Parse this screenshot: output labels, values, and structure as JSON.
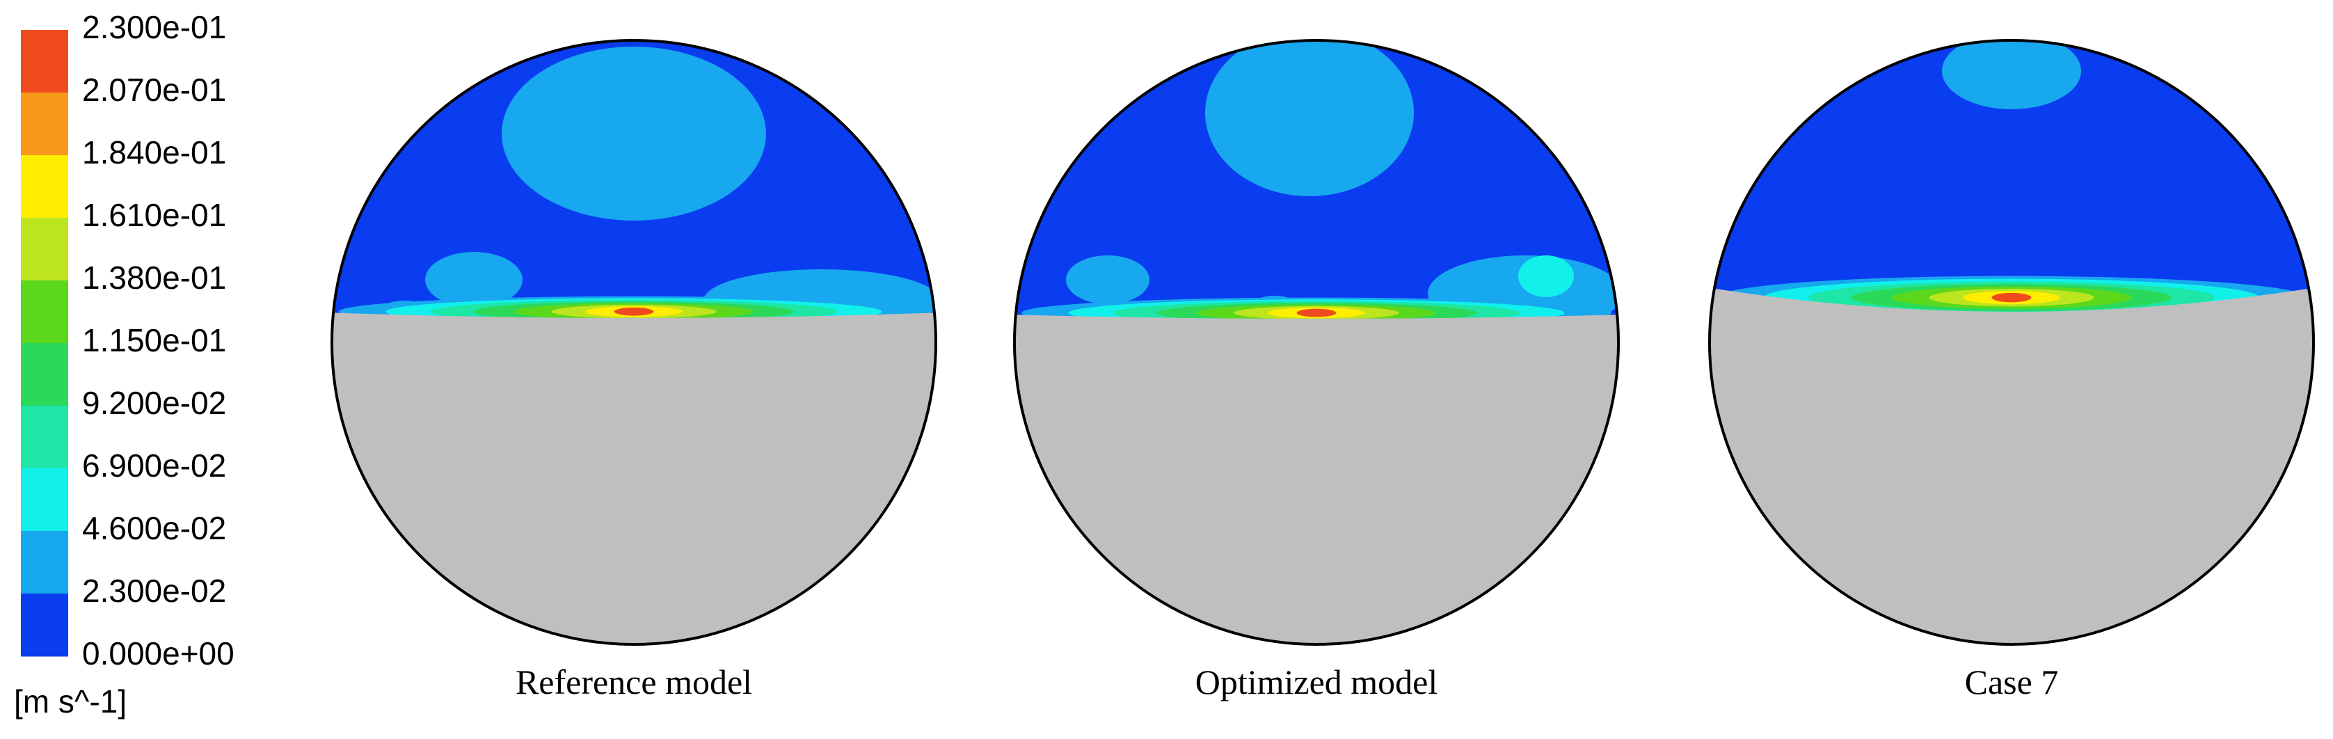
{
  "colorbar": {
    "labels": [
      "2.300e-01",
      "2.070e-01",
      "1.840e-01",
      "1.610e-01",
      "1.380e-01",
      "1.150e-01",
      "9.200e-02",
      "6.900e-02",
      "4.600e-02",
      "2.300e-02",
      "0.000e+00"
    ],
    "colors": [
      "#ee4a1e",
      "#f79a1c",
      "#ffee00",
      "#bce41f",
      "#5bd81c",
      "#2bd95a",
      "#1de6a6",
      "#12f0ec",
      "#18a8ef",
      "#0a3cf0"
    ],
    "unit": "[m s^-1]"
  },
  "panels": [
    {
      "label": "Reference model"
    },
    {
      "label": "Optimized model"
    },
    {
      "label": "Case 7"
    }
  ]
}
